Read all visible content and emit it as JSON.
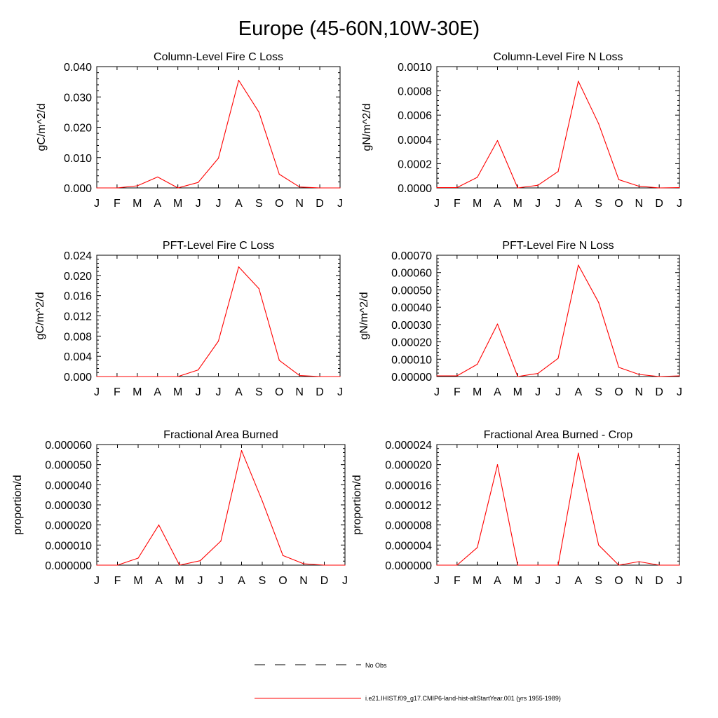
{
  "figure": {
    "title": "Europe (45-60N,10W-30E)"
  },
  "legend": {
    "items": [
      {
        "label": "No Obs",
        "color": "#000000",
        "dash": true
      },
      {
        "label": "i.e21.IHIST.f09_g17.CMIP6-land-hist-altStartYear.001 (yrs 1955-1989)",
        "color": "#ff0000",
        "dash": false
      }
    ]
  },
  "chart_data": [
    {
      "type": "line",
      "title": "Column-Level Fire C Loss",
      "ylabel": "gC/m^2/d",
      "categories": [
        "J",
        "F",
        "M",
        "A",
        "M",
        "J",
        "J",
        "A",
        "S",
        "O",
        "N",
        "D",
        "J"
      ],
      "ylim": [
        0,
        0.04
      ],
      "yticks": [
        "0.000",
        "0.010",
        "0.020",
        "0.030",
        "0.040"
      ],
      "series": [
        {
          "color": "#ff0000",
          "values": [
            0.0,
            0.0,
            0.0007,
            0.0036,
            0.0,
            0.0018,
            0.0098,
            0.0355,
            0.025,
            0.0045,
            0.0003,
            0.0,
            0.0
          ]
        }
      ]
    },
    {
      "type": "line",
      "title": "Column-Level Fire N Loss",
      "ylabel": "gN/m^2/d",
      "categories": [
        "J",
        "F",
        "M",
        "A",
        "M",
        "J",
        "J",
        "A",
        "S",
        "O",
        "N",
        "D",
        "J"
      ],
      "ylim": [
        0,
        0.001
      ],
      "yticks": [
        "0.0000",
        "0.0002",
        "0.0004",
        "0.0006",
        "0.0008",
        "0.0010"
      ],
      "series": [
        {
          "color": "#ff0000",
          "values": [
            3e-06,
            3e-06,
            8.7e-05,
            0.00039,
            0.0,
            2.2e-05,
            0.000135,
            0.00088,
            0.00053,
            6.8e-05,
            1.4e-05,
            0.0,
            3e-06
          ]
        }
      ]
    },
    {
      "type": "line",
      "title": "PFT-Level Fire C Loss",
      "ylabel": "gC/m^2/d",
      "categories": [
        "J",
        "F",
        "M",
        "A",
        "M",
        "J",
        "J",
        "A",
        "S",
        "O",
        "N",
        "D",
        "J"
      ],
      "ylim": [
        0,
        0.024
      ],
      "yticks": [
        "0.000",
        "0.004",
        "0.008",
        "0.012",
        "0.016",
        "0.020",
        "0.024"
      ],
      "series": [
        {
          "color": "#ff0000",
          "values": [
            0.0,
            0.0,
            0.0,
            0.0,
            0.0,
            0.0013,
            0.007,
            0.0217,
            0.0174,
            0.0032,
            0.0002,
            0.0,
            0.0
          ]
        }
      ]
    },
    {
      "type": "line",
      "title": "PFT-Level Fire N Loss",
      "ylabel": "gN/m^2/d",
      "categories": [
        "J",
        "F",
        "M",
        "A",
        "M",
        "J",
        "J",
        "A",
        "S",
        "O",
        "N",
        "D",
        "J"
      ],
      "ylim": [
        0,
        0.0007
      ],
      "yticks": [
        "0.00000",
        "0.00010",
        "0.00020",
        "0.00030",
        "0.00040",
        "0.00050",
        "0.00060",
        "0.00070"
      ],
      "series": [
        {
          "color": "#ff0000",
          "values": [
            4e-06,
            4e-06,
            7.1e-05,
            0.000303,
            0.0,
            1.8e-05,
            0.000105,
            0.000643,
            0.000428,
            5.3e-05,
            1.2e-05,
            0.0,
            4e-06
          ]
        }
      ]
    },
    {
      "type": "line",
      "title": "Fractional Area Burned",
      "ylabel": "proportion/d",
      "categories": [
        "J",
        "F",
        "M",
        "A",
        "M",
        "J",
        "J",
        "A",
        "S",
        "O",
        "N",
        "D",
        "J"
      ],
      "ylim": [
        0,
        6e-05
      ],
      "yticks": [
        "0.000000",
        "0.000010",
        "0.000020",
        "0.000030",
        "0.000040",
        "0.000050",
        "0.000060"
      ],
      "series": [
        {
          "color": "#ff0000",
          "values": [
            0.0,
            0.0,
            3.5e-06,
            2e-05,
            0.0,
            2.2e-06,
            1.2e-05,
            5.7e-05,
            3.2e-05,
            4.8e-06,
            7e-07,
            0.0,
            0.0
          ]
        }
      ]
    },
    {
      "type": "line",
      "title": "Fractional Area Burned - Crop",
      "ylabel": "proportion/d",
      "categories": [
        "J",
        "F",
        "M",
        "A",
        "M",
        "J",
        "J",
        "A",
        "S",
        "O",
        "N",
        "D",
        "J"
      ],
      "ylim": [
        0,
        2.4e-05
      ],
      "yticks": [
        "0.000000",
        "0.000004",
        "0.000008",
        "0.000012",
        "0.000016",
        "0.000020",
        "0.000024"
      ],
      "series": [
        {
          "color": "#ff0000",
          "values": [
            0.0,
            0.0,
            3.5e-06,
            2e-05,
            0.0,
            0.0,
            0.0,
            2.23e-05,
            4e-06,
            0.0,
            7e-07,
            0.0,
            0.0
          ]
        }
      ]
    }
  ]
}
